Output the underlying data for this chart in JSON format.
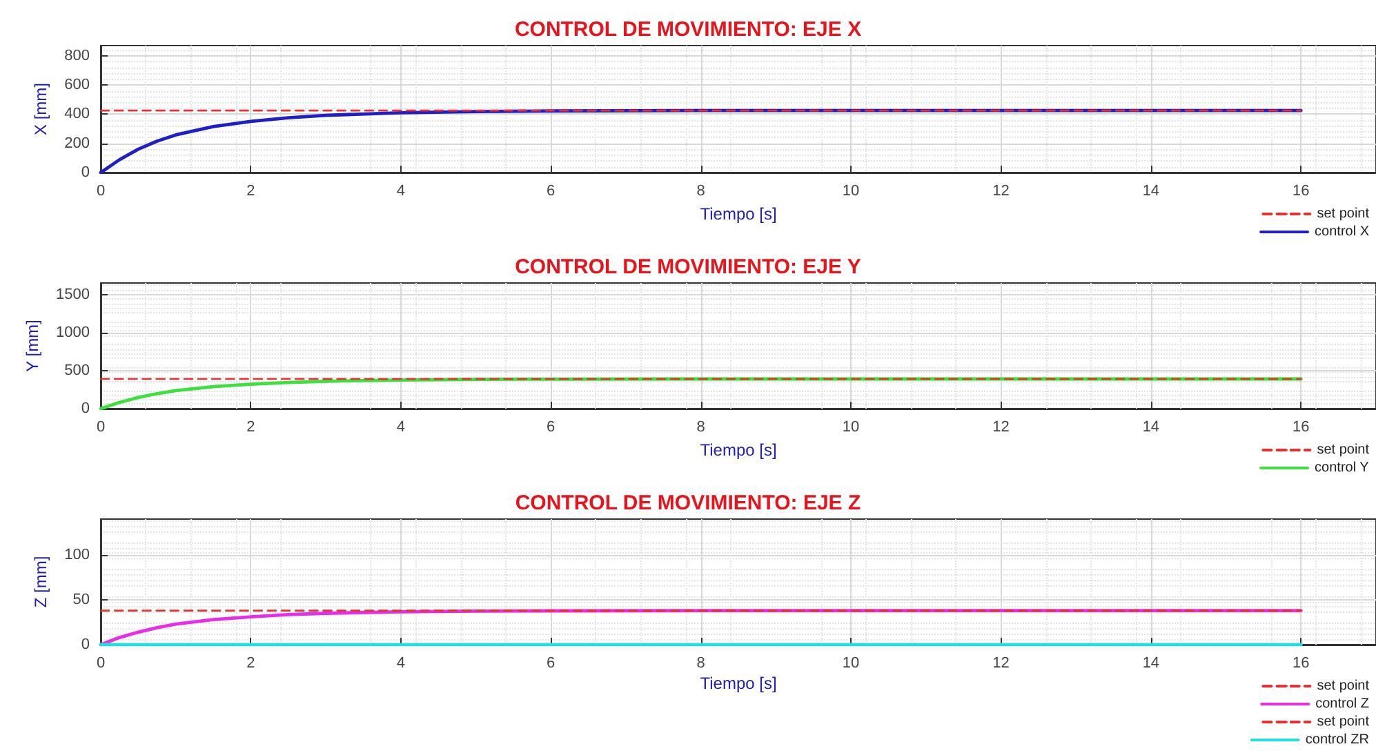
{
  "chart_data": [
    {
      "type": "line",
      "title": "CONTROL DE MOVIMIENTO: EJE X",
      "xlabel": "Tiempo [s]",
      "ylabel": "X [mm]",
      "xlim": [
        0,
        17
      ],
      "xticks": [
        0,
        2,
        4,
        6,
        8,
        10,
        12,
        14,
        16
      ],
      "ylim": [
        0,
        870
      ],
      "yticks": [
        0,
        200,
        400,
        600,
        800
      ],
      "grid": true,
      "legend": "bottom right",
      "series": [
        {
          "name": "set point",
          "color": "#e83030",
          "line_style": "dashed",
          "x": [
            0,
            16
          ],
          "values": [
            425,
            425
          ]
        },
        {
          "name": "control X",
          "color": "#1f1fc8",
          "line_style": "solid",
          "x": [
            0,
            0.25,
            0.5,
            0.75,
            1,
            1.5,
            2,
            2.5,
            3,
            4,
            5,
            6,
            8,
            16
          ],
          "values": [
            0,
            88,
            160,
            215,
            258,
            315,
            350,
            375,
            392,
            410,
            418,
            422,
            425,
            425
          ]
        }
      ]
    },
    {
      "type": "line",
      "title": "CONTROL DE MOVIMIENTO: EJE Y",
      "xlabel": "Tiempo [s]",
      "ylabel": "Y [mm]",
      "xlim": [
        0,
        17
      ],
      "xticks": [
        0,
        2,
        4,
        6,
        8,
        10,
        12,
        14,
        16
      ],
      "ylim": [
        0,
        1650
      ],
      "yticks": [
        0,
        500,
        1000,
        1500
      ],
      "grid": true,
      "legend": "bottom right",
      "series": [
        {
          "name": "set point",
          "color": "#e83030",
          "line_style": "dashed",
          "x": [
            0,
            16
          ],
          "values": [
            390,
            390
          ]
        },
        {
          "name": "control Y",
          "color": "#3ee03e",
          "line_style": "solid",
          "x": [
            0,
            0.25,
            0.5,
            0.75,
            1,
            1.5,
            2,
            2.5,
            3,
            4,
            5,
            6,
            8,
            16
          ],
          "values": [
            0,
            81,
            147,
            197,
            237,
            289,
            321,
            344,
            360,
            376,
            384,
            387,
            390,
            390
          ]
        }
      ]
    },
    {
      "type": "line",
      "title": "CONTROL DE MOVIMIENTO: EJE Z",
      "xlabel": "Tiempo [s]",
      "ylabel": "Z [mm]",
      "xlim": [
        0,
        17
      ],
      "xticks": [
        0,
        2,
        4,
        6,
        8,
        10,
        12,
        14,
        16
      ],
      "ylim": [
        0,
        140
      ],
      "yticks": [
        0,
        50,
        100
      ],
      "grid": true,
      "legend": "bottom right",
      "series": [
        {
          "name": "set point",
          "color": "#e83030",
          "line_style": "dashed",
          "x": [
            0,
            16
          ],
          "values": [
            38,
            38
          ]
        },
        {
          "name": "control Z",
          "color": "#e62ee6",
          "line_style": "solid",
          "x": [
            0,
            0.25,
            0.5,
            0.75,
            1,
            1.5,
            2,
            2.5,
            3,
            4,
            5,
            6,
            8,
            16
          ],
          "values": [
            0,
            8,
            14,
            19,
            23,
            28,
            31,
            33.5,
            35,
            36.7,
            37.4,
            37.7,
            38,
            38
          ]
        },
        {
          "name": "set point",
          "color": "#e83030",
          "line_style": "dashed",
          "values": [
            null
          ]
        },
        {
          "name": "control ZR",
          "color": "#22dede",
          "line_style": "solid",
          "x": [
            0,
            16
          ],
          "values": [
            0,
            0
          ]
        }
      ]
    }
  ]
}
